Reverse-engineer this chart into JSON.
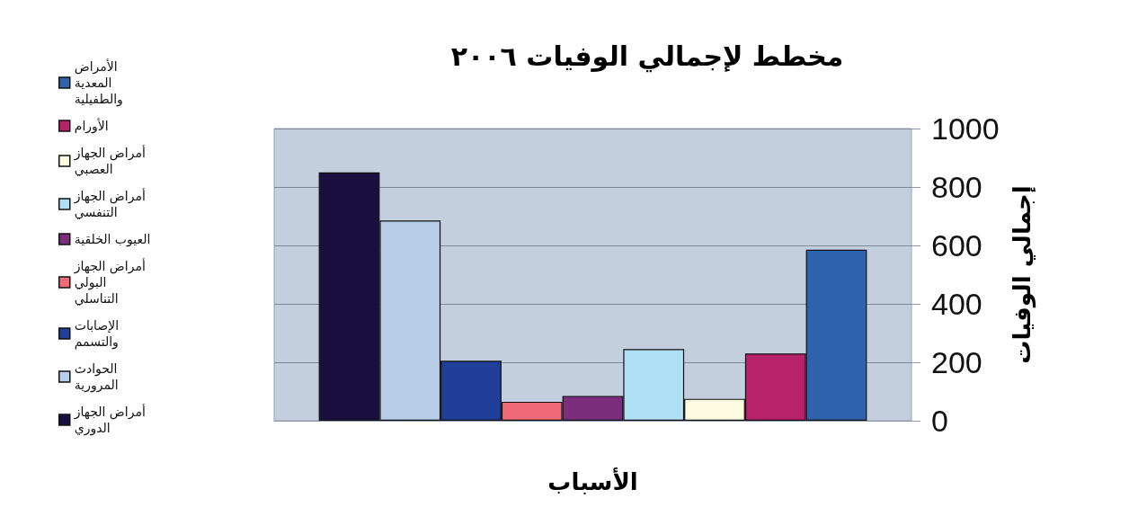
{
  "chart_data": {
    "type": "bar",
    "title": "مخطط لإجمالي الوفيات ٢٠٠٦",
    "xlabel": "الأسباب",
    "ylabel": "إجمالي الوفيات",
    "categories": [
      null
    ],
    "series": [
      {
        "name": "أمراض الجهاز الدوري",
        "color": "#1a1040",
        "values": [
          850
        ]
      },
      {
        "name": "الحوادث المرورية",
        "color": "#b7cde8",
        "values": [
          685
        ]
      },
      {
        "name": "الإصابات والتسمم",
        "color": "#1f3f99",
        "values": [
          205
        ]
      },
      {
        "name": "أمراض الجهاز البولي التناسلي",
        "color": "#ef6b7a",
        "values": [
          65
        ]
      },
      {
        "name": "العيوب الخلقية",
        "color": "#7b2e7b",
        "values": [
          85
        ]
      },
      {
        "name": "أمراض الجهاز التنفسي",
        "color": "#b0e0f4",
        "values": [
          245
        ]
      },
      {
        "name": "أمراض الجهاز العصبي",
        "color": "#fdfbe0",
        "values": [
          75
        ]
      },
      {
        "name": "الأورام",
        "color": "#b8226a",
        "values": [
          230
        ]
      },
      {
        "name": "الأمراض المعدية والطفيلية",
        "color": "#2f63ad",
        "values": [
          585
        ]
      }
    ],
    "ylim": [
      0,
      1000
    ],
    "yticks": [
      0,
      200,
      400,
      600,
      800,
      1000
    ],
    "grid": "y",
    "legend": "left"
  }
}
